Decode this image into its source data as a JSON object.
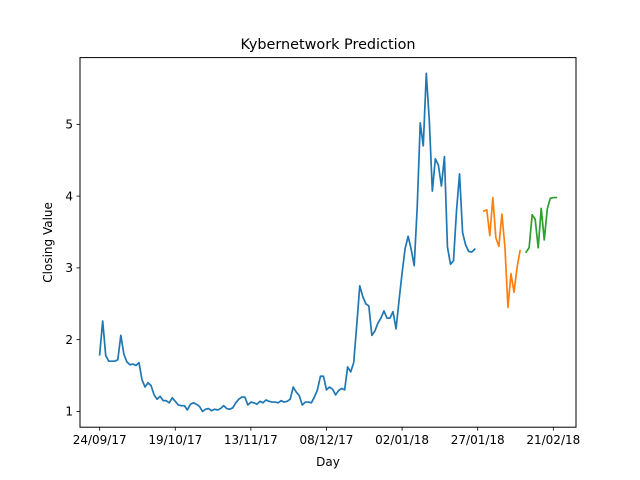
{
  "chart_data": {
    "type": "line",
    "title": "Kybernetwork Prediction",
    "xlabel": "Day",
    "ylabel": "Closing Value",
    "x_ticks": [
      {
        "pos": 0,
        "label": "24/09/17"
      },
      {
        "pos": 25,
        "label": "19/10/17"
      },
      {
        "pos": 50,
        "label": "13/11/17"
      },
      {
        "pos": 75,
        "label": "08/12/17"
      },
      {
        "pos": 100,
        "label": "02/01/18"
      },
      {
        "pos": 125,
        "label": "27/01/18"
      },
      {
        "pos": 150,
        "label": "21/02/18"
      }
    ],
    "y_ticks": [
      1,
      2,
      3,
      4,
      5
    ],
    "xlim": [
      -6.5,
      157.5
    ],
    "ylim": [
      0.78,
      5.93
    ],
    "grid": false,
    "legend": "none",
    "series": [
      {
        "color": "#1f77b4",
        "points": [
          [
            0,
            1.79
          ],
          [
            1,
            2.26
          ],
          [
            2,
            1.78
          ],
          [
            3,
            1.7
          ],
          [
            4,
            1.7
          ],
          [
            5,
            1.7
          ],
          [
            6,
            1.72
          ],
          [
            7,
            2.06
          ],
          [
            8,
            1.8
          ],
          [
            9,
            1.69
          ],
          [
            10,
            1.65
          ],
          [
            11,
            1.66
          ],
          [
            12,
            1.64
          ],
          [
            13,
            1.68
          ],
          [
            14,
            1.44
          ],
          [
            15,
            1.34
          ],
          [
            16,
            1.4
          ],
          [
            17,
            1.36
          ],
          [
            18,
            1.23
          ],
          [
            19,
            1.17
          ],
          [
            20,
            1.21
          ],
          [
            21,
            1.15
          ],
          [
            22,
            1.15
          ],
          [
            23,
            1.12
          ],
          [
            24,
            1.19
          ],
          [
            25,
            1.14
          ],
          [
            26,
            1.09
          ],
          [
            27,
            1.08
          ],
          [
            28,
            1.08
          ],
          [
            29,
            1.02
          ],
          [
            30,
            1.1
          ],
          [
            31,
            1.12
          ],
          [
            32,
            1.1
          ],
          [
            33,
            1.07
          ],
          [
            34,
            1.0
          ],
          [
            35,
            1.03
          ],
          [
            36,
            1.04
          ],
          [
            37,
            1.01
          ],
          [
            38,
            1.03
          ],
          [
            39,
            1.02
          ],
          [
            40,
            1.04
          ],
          [
            41,
            1.08
          ],
          [
            42,
            1.04
          ],
          [
            43,
            1.03
          ],
          [
            44,
            1.05
          ],
          [
            45,
            1.12
          ],
          [
            46,
            1.17
          ],
          [
            47,
            1.2
          ],
          [
            48,
            1.2
          ],
          [
            49,
            1.09
          ],
          [
            50,
            1.13
          ],
          [
            51,
            1.12
          ],
          [
            52,
            1.1
          ],
          [
            53,
            1.14
          ],
          [
            54,
            1.12
          ],
          [
            55,
            1.16
          ],
          [
            56,
            1.14
          ],
          [
            57,
            1.13
          ],
          [
            58,
            1.13
          ],
          [
            59,
            1.12
          ],
          [
            60,
            1.15
          ],
          [
            61,
            1.13
          ],
          [
            62,
            1.14
          ],
          [
            63,
            1.17
          ],
          [
            64,
            1.34
          ],
          [
            65,
            1.27
          ],
          [
            66,
            1.22
          ],
          [
            67,
            1.09
          ],
          [
            68,
            1.13
          ],
          [
            69,
            1.13
          ],
          [
            70,
            1.12
          ],
          [
            71,
            1.2
          ],
          [
            72,
            1.3
          ],
          [
            73,
            1.49
          ],
          [
            74,
            1.49
          ],
          [
            75,
            1.3
          ],
          [
            76,
            1.34
          ],
          [
            77,
            1.31
          ],
          [
            78,
            1.23
          ],
          [
            79,
            1.29
          ],
          [
            80,
            1.32
          ],
          [
            81,
            1.3
          ],
          [
            82,
            1.62
          ],
          [
            83,
            1.55
          ],
          [
            84,
            1.68
          ],
          [
            85,
            2.2
          ],
          [
            86,
            2.75
          ],
          [
            87,
            2.6
          ],
          [
            88,
            2.5
          ],
          [
            89,
            2.47
          ],
          [
            90,
            2.06
          ],
          [
            91,
            2.12
          ],
          [
            92,
            2.23
          ],
          [
            93,
            2.3
          ],
          [
            94,
            2.4
          ],
          [
            95,
            2.3
          ],
          [
            96,
            2.3
          ],
          [
            97,
            2.39
          ],
          [
            98,
            2.15
          ],
          [
            99,
            2.55
          ],
          [
            100,
            2.93
          ],
          [
            101,
            3.27
          ],
          [
            102,
            3.44
          ],
          [
            103,
            3.26
          ],
          [
            104,
            3.03
          ],
          [
            105,
            3.85
          ],
          [
            106,
            5.02
          ],
          [
            107,
            4.7
          ],
          [
            108,
            5.71
          ],
          [
            109,
            5.05
          ],
          [
            110,
            4.07
          ],
          [
            111,
            4.52
          ],
          [
            112,
            4.43
          ],
          [
            113,
            4.14
          ],
          [
            114,
            4.55
          ],
          [
            115,
            3.29
          ],
          [
            116,
            3.05
          ],
          [
            117,
            3.1
          ],
          [
            118,
            3.8
          ],
          [
            119,
            4.31
          ],
          [
            120,
            3.49
          ],
          [
            121,
            3.32
          ],
          [
            122,
            3.23
          ],
          [
            123,
            3.22
          ],
          [
            124,
            3.26
          ]
        ]
      },
      {
        "color": "#ff7f0e",
        "points": [
          [
            127,
            3.79
          ],
          [
            128,
            3.81
          ],
          [
            129,
            3.45
          ],
          [
            130,
            3.98
          ],
          [
            131,
            3.42
          ],
          [
            132,
            3.3
          ],
          [
            133,
            3.75
          ],
          [
            134,
            3.29
          ],
          [
            135,
            2.45
          ],
          [
            136,
            2.92
          ],
          [
            137,
            2.66
          ],
          [
            138,
            3.0
          ],
          [
            139,
            3.24
          ]
        ]
      },
      {
        "color": "#2ca02c",
        "points": [
          [
            141,
            3.22
          ],
          [
            142,
            3.28
          ],
          [
            143,
            3.74
          ],
          [
            144,
            3.68
          ],
          [
            145,
            3.28
          ],
          [
            146,
            3.83
          ],
          [
            147,
            3.39
          ],
          [
            148,
            3.82
          ],
          [
            149,
            3.97
          ],
          [
            150,
            3.98
          ],
          [
            151,
            3.98
          ]
        ]
      }
    ]
  }
}
